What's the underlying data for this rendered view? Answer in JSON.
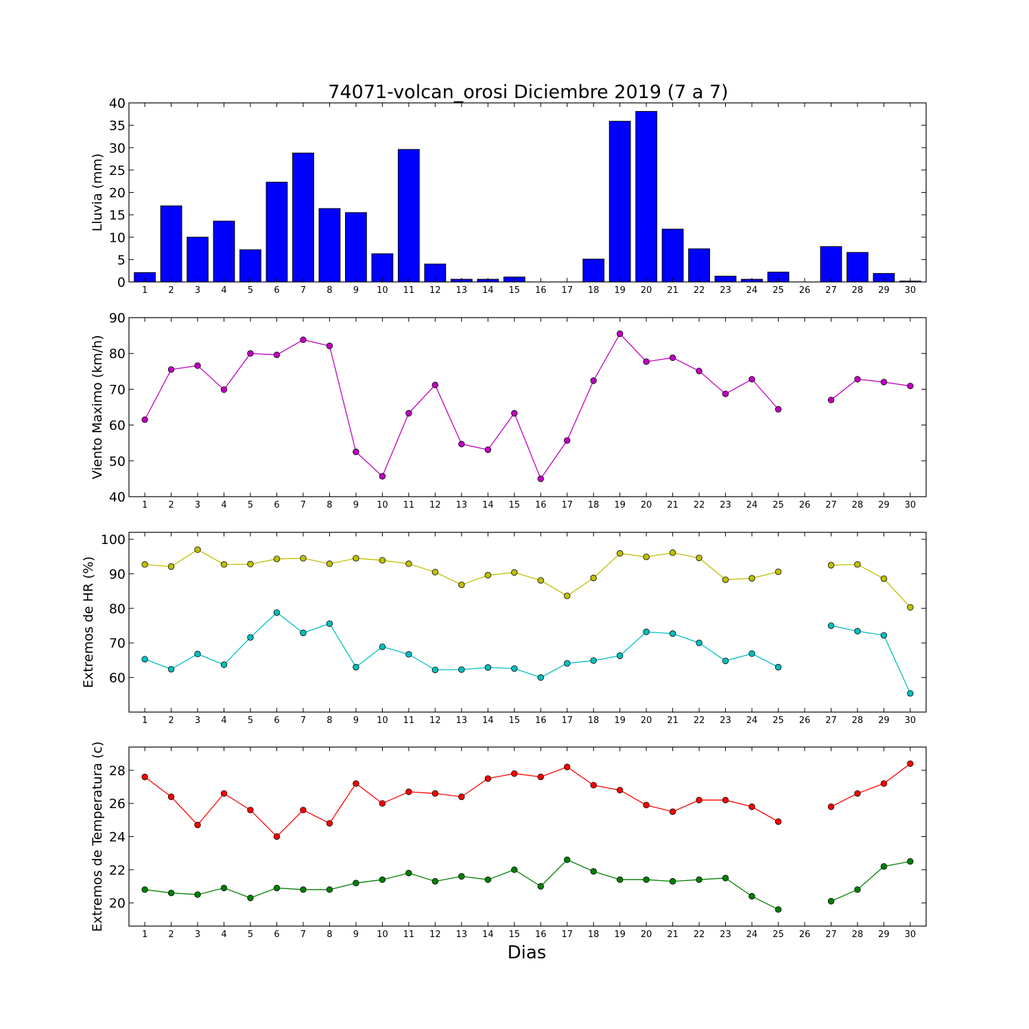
{
  "chart_data": [
    {
      "type": "bar",
      "title": "74071-volcan_orosi Diciembre 2019  (7 a 7)",
      "ylabel": "Lluvia (mm)",
      "xlabel": "",
      "ylim": [
        0,
        40
      ],
      "yticks": [
        0,
        5,
        10,
        15,
        20,
        25,
        30,
        35,
        40
      ],
      "categories": [
        "1",
        "2",
        "3",
        "4",
        "5",
        "6",
        "7",
        "8",
        "9",
        "10",
        "11",
        "12",
        "13",
        "14",
        "15",
        "16",
        "17",
        "18",
        "19",
        "20",
        "21",
        "22",
        "23",
        "24",
        "25",
        "26",
        "27",
        "28",
        "29",
        "30"
      ],
      "colors": {
        "bar": "#0000ff"
      },
      "series": [
        {
          "values": [
            2.1,
            17.0,
            10.0,
            13.6,
            7.2,
            22.3,
            28.8,
            16.4,
            15.5,
            6.3,
            29.6,
            4.0,
            0.6,
            0.6,
            1.1,
            0,
            0,
            5.1,
            35.9,
            38.1,
            11.8,
            7.4,
            1.3,
            0.6,
            2.2,
            null,
            7.9,
            6.6,
            1.9,
            0.2
          ]
        }
      ]
    },
    {
      "type": "line",
      "ylabel": "Viento Maximo (km/h)",
      "xlabel": "",
      "ylim": [
        40,
        90
      ],
      "yticks": [
        40,
        50,
        60,
        70,
        80,
        90
      ],
      "categories": [
        "1",
        "2",
        "3",
        "4",
        "5",
        "6",
        "7",
        "8",
        "9",
        "10",
        "11",
        "12",
        "13",
        "14",
        "15",
        "16",
        "17",
        "18",
        "19",
        "20",
        "21",
        "22",
        "23",
        "24",
        "25",
        "26",
        "27",
        "28",
        "29",
        "30"
      ],
      "series": [
        {
          "color": "#bf00bf",
          "values": [
            61.5,
            75.5,
            76.6,
            69.9,
            80.0,
            79.6,
            83.8,
            82.1,
            52.5,
            45.7,
            63.3,
            71.2,
            54.7,
            53.1,
            63.3,
            45.0,
            55.7,
            72.4,
            85.5,
            77.7,
            78.8,
            75.1,
            68.7,
            72.8,
            64.4,
            null,
            67.0,
            72.8,
            72.0,
            70.9
          ]
        }
      ]
    },
    {
      "type": "line",
      "ylabel": "Extremos de HR (%)",
      "xlabel": "",
      "ylim": [
        50,
        102
      ],
      "yticks": [
        60,
        70,
        80,
        90,
        100
      ],
      "categories": [
        "1",
        "2",
        "3",
        "4",
        "5",
        "6",
        "7",
        "8",
        "9",
        "10",
        "11",
        "12",
        "13",
        "14",
        "15",
        "16",
        "17",
        "18",
        "19",
        "20",
        "21",
        "22",
        "23",
        "24",
        "25",
        "26",
        "27",
        "28",
        "29",
        "30"
      ],
      "series": [
        {
          "color": "#bfbf00",
          "values": [
            92.7,
            92.1,
            97.0,
            92.7,
            92.8,
            94.3,
            94.5,
            92.9,
            94.5,
            93.9,
            92.9,
            90.5,
            86.8,
            89.6,
            90.4,
            88.1,
            83.6,
            88.8,
            95.9,
            94.9,
            96.1,
            94.6,
            88.3,
            88.7,
            90.6,
            null,
            92.5,
            92.7,
            88.6,
            80.3
          ]
        },
        {
          "color": "#00bfbf",
          "values": [
            65.3,
            62.4,
            66.8,
            63.7,
            71.6,
            78.8,
            72.9,
            75.6,
            63.0,
            68.9,
            66.7,
            62.2,
            62.3,
            62.9,
            62.6,
            60.0,
            64.1,
            64.9,
            66.3,
            73.2,
            72.7,
            70.0,
            64.8,
            66.9,
            63.0,
            null,
            75.0,
            73.4,
            72.2,
            55.4
          ]
        }
      ]
    },
    {
      "type": "line",
      "ylabel": "Extremos de Temperatura (c)",
      "xlabel": "Dias",
      "ylim": [
        18.6,
        29.4
      ],
      "yticks": [
        20,
        22,
        24,
        26,
        28
      ],
      "categories": [
        "1",
        "2",
        "3",
        "4",
        "5",
        "6",
        "7",
        "8",
        "9",
        "10",
        "11",
        "12",
        "13",
        "14",
        "15",
        "16",
        "17",
        "18",
        "19",
        "20",
        "21",
        "22",
        "23",
        "24",
        "25",
        "26",
        "27",
        "28",
        "29",
        "30"
      ],
      "series": [
        {
          "color": "#ff0000",
          "values": [
            27.6,
            26.4,
            24.7,
            26.6,
            25.6,
            24.0,
            25.6,
            24.8,
            27.2,
            26.0,
            26.7,
            26.6,
            26.4,
            27.5,
            27.8,
            27.6,
            28.2,
            27.1,
            26.8,
            25.9,
            25.5,
            26.2,
            26.2,
            25.8,
            24.9,
            null,
            25.8,
            26.6,
            27.2,
            28.4
          ]
        },
        {
          "color": "#007f00",
          "values": [
            20.8,
            20.6,
            20.5,
            20.9,
            20.3,
            20.9,
            20.8,
            20.8,
            21.2,
            21.4,
            21.8,
            21.3,
            21.6,
            21.4,
            22.0,
            21.0,
            22.6,
            21.9,
            21.4,
            21.4,
            21.3,
            21.4,
            21.5,
            20.4,
            19.6,
            null,
            20.1,
            20.8,
            22.2,
            22.5
          ]
        }
      ]
    }
  ]
}
